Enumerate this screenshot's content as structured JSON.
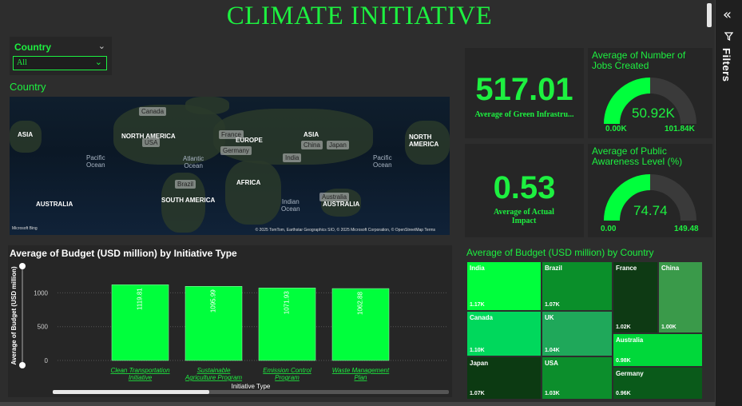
{
  "title": "CLIMATE INITIATIVE",
  "filters_pane": {
    "label": "Filters"
  },
  "slicer": {
    "label": "Country",
    "value": "All"
  },
  "map": {
    "title": "Country",
    "continents": [
      "ASIA",
      "NORTH AMERICA",
      "EUROPE",
      "ASIA",
      "NORTH AMERICA",
      "AFRICA",
      "SOUTH AMERICA",
      "AUSTRALIA",
      "AUSTRALIA"
    ],
    "oceans": [
      "Pacific\nOcean",
      "Atlantic\nOcean",
      "Indian\nOcean",
      "Pacific\nOcean"
    ],
    "pins": [
      "Canada",
      "USA",
      "France",
      "Germany",
      "China",
      "Japan",
      "India",
      "Brazil",
      "Australia"
    ],
    "credit": "© 2025 TomTom, Earthstar Geographics SIO, © 2025 Microsoft Corporation, © OpenStreetMap  Terms",
    "provider": "Microsoft Bing"
  },
  "kpis": [
    {
      "value": "517.01",
      "label": "Average of Green Infrastru..."
    },
    {
      "value": "0.53",
      "label": "Average of Actual Impact"
    }
  ],
  "gauges": [
    {
      "title": "Average of Number of Jobs Created",
      "value_text": "50.92K",
      "min": "0.00K",
      "max": "101.84K",
      "fraction": 0.5
    },
    {
      "title": "Average of Public Awareness Level (%)",
      "value_text": "74.74",
      "min": "0.00",
      "max": "149.48",
      "fraction": 0.5
    }
  ],
  "bar_chart": {
    "title": "Average of Budget (USD million) by Initiative Type",
    "xlabel": "Initiative Type",
    "ylabel": "Average of Budget (USD million)",
    "ytick_labels": [
      "1000",
      "500",
      "0"
    ],
    "category_labels": [
      "Clean Transportation Initiative",
      "Sustainable Agriculture Program",
      "Emission Control Program",
      "Waste Management Plan"
    ],
    "value_labels": [
      "1119.81",
      "1095.99",
      "1071.93",
      "1062.88"
    ]
  },
  "chart_data": {
    "type": "bar",
    "title": "Average of Budget (USD million) by Initiative Type",
    "xlabel": "Initiative Type",
    "ylabel": "Average of Budget (USD million)",
    "categories": [
      "Clean Transportation Initiative",
      "Sustainable Agriculture Program",
      "Emission Control Program",
      "Waste Management Plan"
    ],
    "values": [
      1119.81,
      1095.99,
      1071.93,
      1062.88
    ],
    "ylim": [
      0,
      1300
    ],
    "yticks": [
      0,
      500,
      1000
    ],
    "bar_color": "#00ff3c",
    "grid": true
  },
  "treemap": {
    "title": "Average of Budget (USD million) by Country",
    "tiles": [
      {
        "name": "India",
        "value": "1.17K",
        "color": "#00ff3c"
      },
      {
        "name": "Brazil",
        "value": "1.07K",
        "color": "#0a8f2a"
      },
      {
        "name": "France",
        "value": "1.02K",
        "color": "#0e3a14"
      },
      {
        "name": "China",
        "value": "1.00K",
        "color": "#3a9a4a"
      },
      {
        "name": "Canada",
        "value": "1.10K",
        "color": "#00d85c"
      },
      {
        "name": "UK",
        "value": "1.04K",
        "color": "#1fa85a"
      },
      {
        "name": "Australia",
        "value": "0.98K",
        "color": "#00d83a"
      },
      {
        "name": "Japan",
        "value": "1.07K",
        "color": "#0c3a12"
      },
      {
        "name": "USA",
        "value": "1.03K",
        "color": "#0c8e2c"
      },
      {
        "name": "Germany",
        "value": "0.96K",
        "color": "#0a5a1a"
      }
    ]
  }
}
